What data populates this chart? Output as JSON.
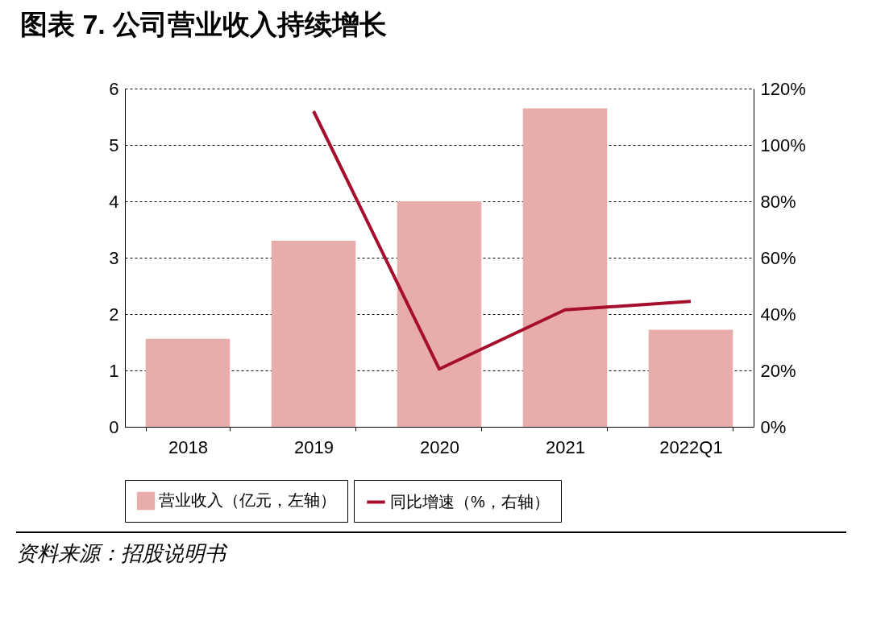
{
  "chart_data": {
    "type": "bar",
    "title": "图表 7. 公司营业收入持续增长",
    "categories": [
      "2018",
      "2019",
      "2020",
      "2021",
      "2022Q1"
    ],
    "series": [
      {
        "name": "营业收入（亿元，左轴）",
        "color": "#e8adab",
        "values": [
          1.56,
          3.3,
          4.0,
          5.65,
          1.72
        ]
      },
      {
        "name": "同比增速（%，右轴）",
        "type": "line",
        "axis": "y2",
        "color": "#a50f2d",
        "values": [
          null,
          112,
          20.5,
          41.5,
          44.5
        ]
      }
    ],
    "ylim": [
      0,
      6
    ],
    "yticks": [
      0,
      1,
      2,
      3,
      4,
      5,
      6
    ],
    "y2lim": [
      0,
      120
    ],
    "y2ticks": [
      {
        "value": 0,
        "label": "0%"
      },
      {
        "value": 20,
        "label": "20%"
      },
      {
        "value": 40,
        "label": "40%"
      },
      {
        "value": 60,
        "label": "60%"
      },
      {
        "value": 80,
        "label": "80%"
      },
      {
        "value": 100,
        "label": "100%"
      },
      {
        "value": 120,
        "label": "120%"
      }
    ],
    "grid": "y",
    "legend": "bottom",
    "line_style": "solid",
    "marker": "none",
    "annotations": [
      "资料来源：招股说明书"
    ]
  }
}
